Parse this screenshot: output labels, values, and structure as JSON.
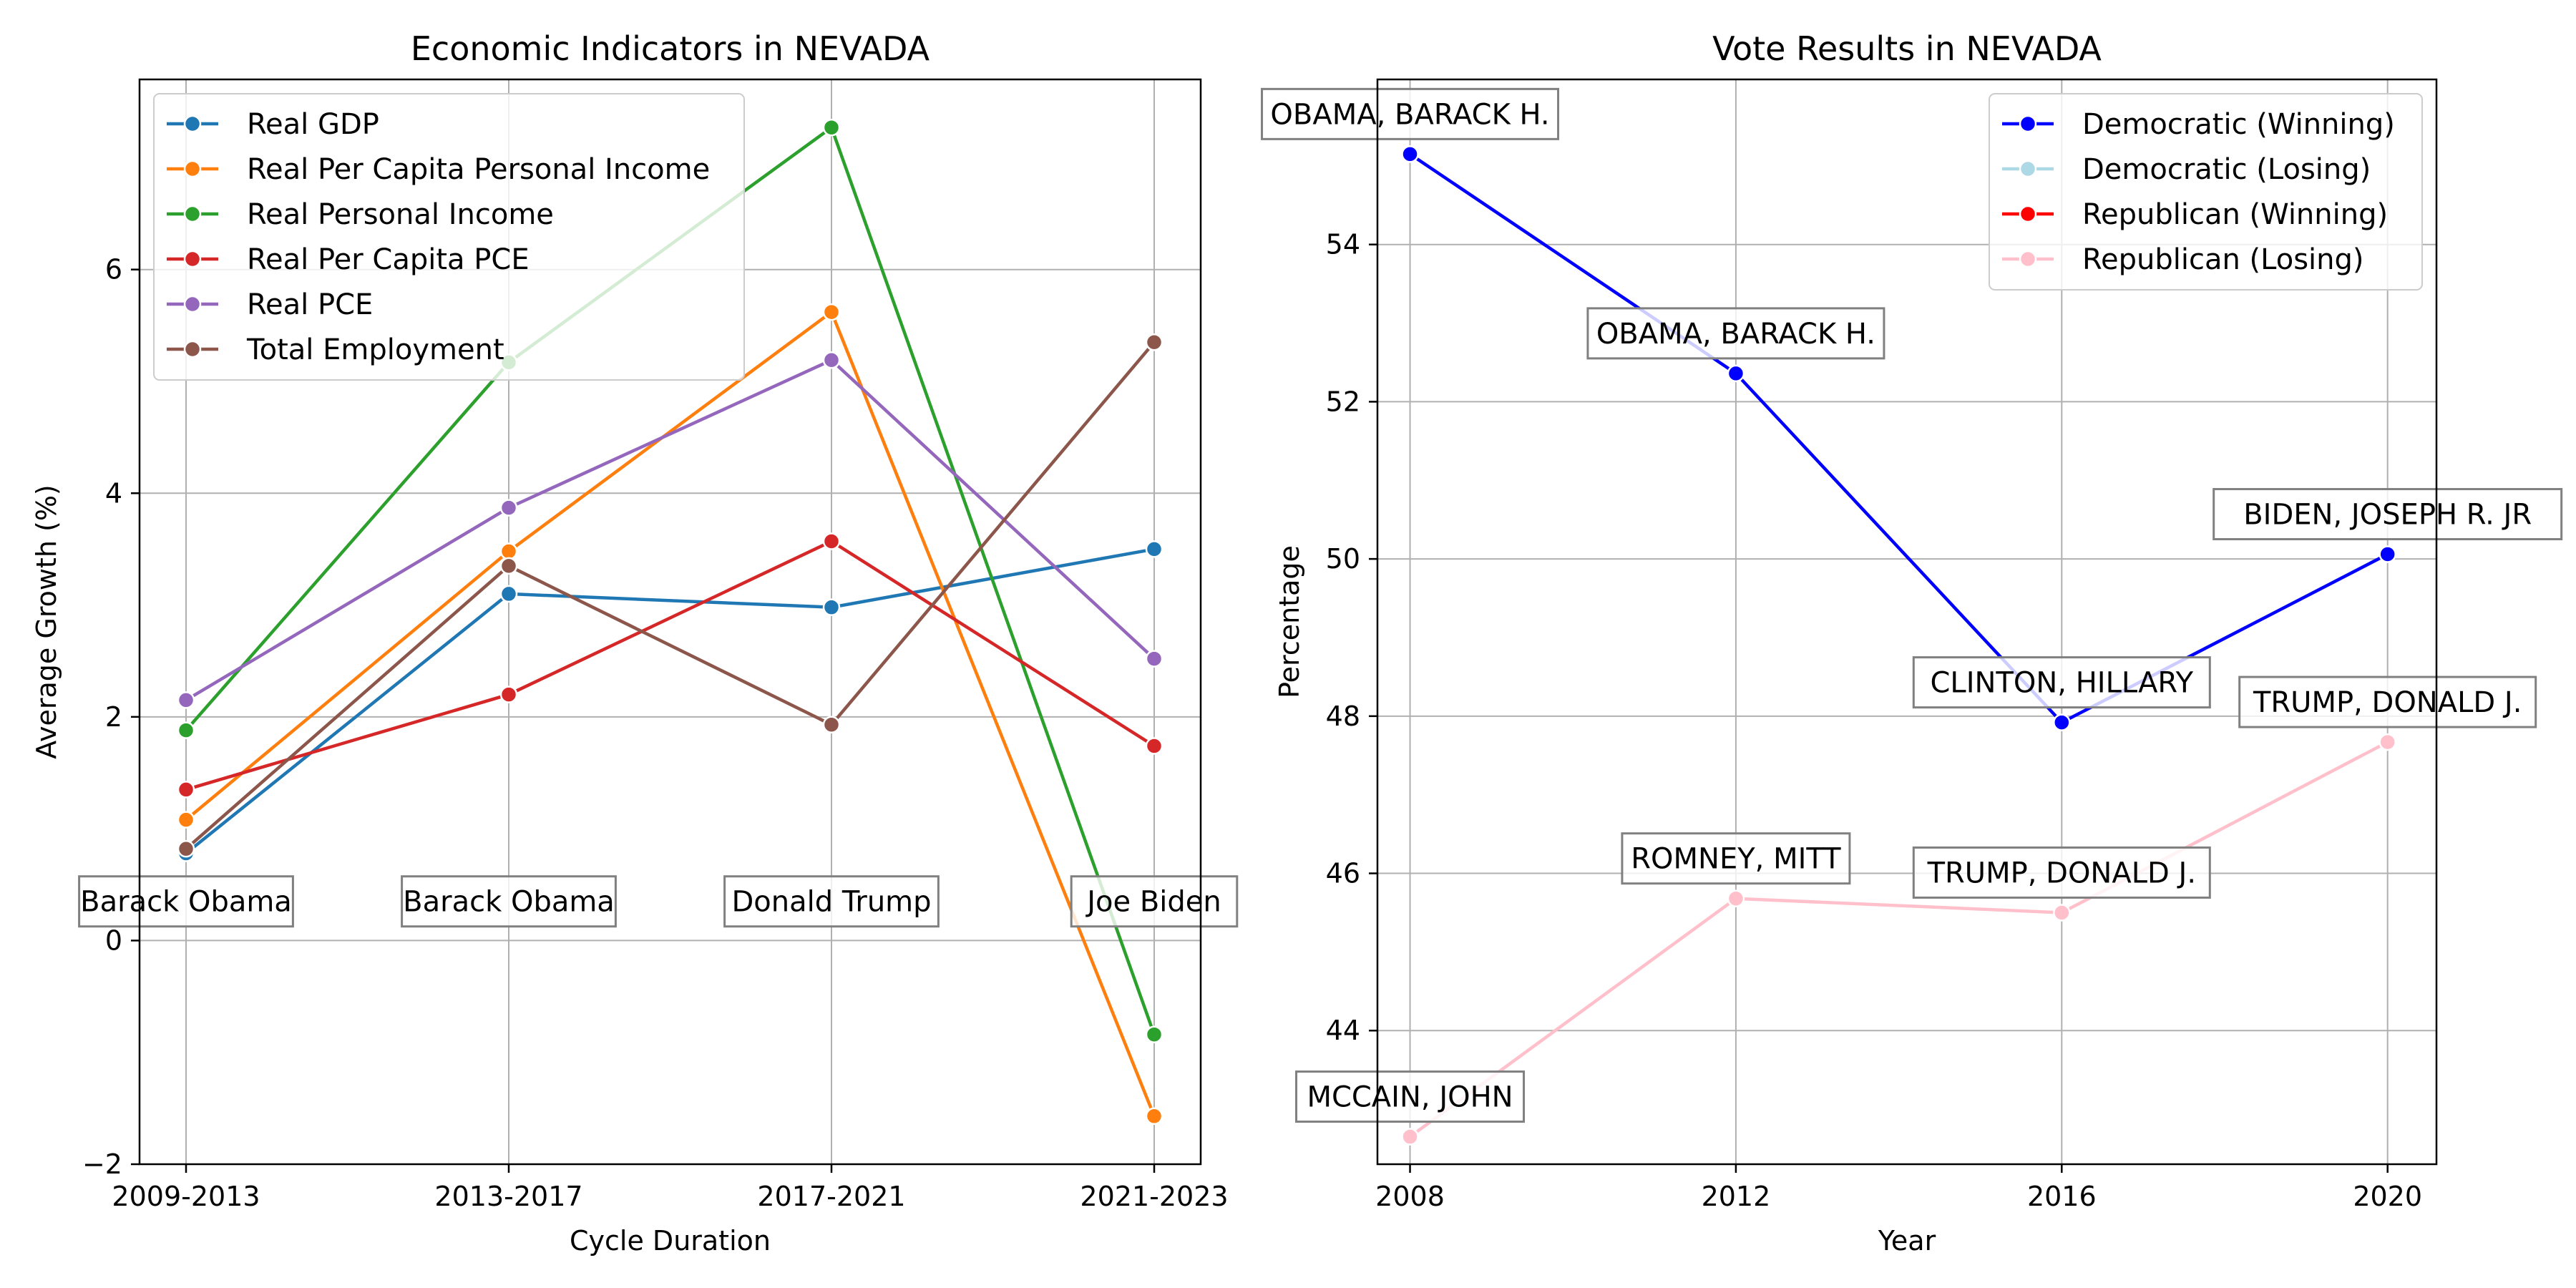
{
  "chart_data": [
    {
      "type": "line",
      "title": "Economic Indicators in NEVADA",
      "xlabel": "Cycle Duration",
      "ylabel": "Average Growth (%)",
      "categories": [
        "2009-2013",
        "2013-2017",
        "2017-2021",
        "2021-2023"
      ],
      "ylim": [
        -2.0,
        7.7
      ],
      "yticks": [
        -2,
        0,
        2,
        4,
        6
      ],
      "grid": true,
      "legend_position": "upper-left",
      "series": [
        {
          "name": "Real GDP",
          "color": "#1f77b4",
          "values": [
            0.78,
            3.1,
            2.98,
            3.5
          ]
        },
        {
          "name": "Real Per Capita Personal Income",
          "color": "#ff7f0e",
          "values": [
            1.08,
            3.48,
            5.62,
            -1.57
          ]
        },
        {
          "name": "Real Personal Income",
          "color": "#2ca02c",
          "values": [
            1.88,
            5.17,
            7.27,
            -0.84
          ]
        },
        {
          "name": "Real Per Capita PCE",
          "color": "#d62728",
          "values": [
            1.35,
            2.2,
            3.57,
            1.74
          ]
        },
        {
          "name": "Real PCE",
          "color": "#9467bd",
          "values": [
            2.15,
            3.87,
            5.19,
            2.52
          ]
        },
        {
          "name": "Total Employment",
          "color": "#8c564b",
          "values": [
            0.82,
            3.35,
            1.93,
            5.35
          ]
        }
      ],
      "annotations": [
        {
          "text": "Barack Obama",
          "category": "2009-2013",
          "y": 0.35
        },
        {
          "text": "Barack Obama",
          "category": "2013-2017",
          "y": 0.35
        },
        {
          "text": "Donald Trump",
          "category": "2017-2021",
          "y": 0.35
        },
        {
          "text": "Joe Biden",
          "category": "2021-2023",
          "y": 0.35
        }
      ]
    },
    {
      "type": "line",
      "title": "Vote Results in NEVADA",
      "xlabel": "Year",
      "ylabel": "Percentage",
      "x": [
        2008,
        2012,
        2016,
        2020
      ],
      "xlim": [
        2007.6,
        2020.6
      ],
      "ylim": [
        42.3,
        56.1
      ],
      "yticks": [
        44,
        46,
        48,
        50,
        52,
        54
      ],
      "grid": true,
      "legend_position": "upper-right",
      "legend": [
        {
          "name": "Democratic (Winning)",
          "color": "#0000ff"
        },
        {
          "name": "Democratic (Losing)",
          "color": "#add8e6"
        },
        {
          "name": "Republican (Winning)",
          "color": "#ff0000"
        },
        {
          "name": "Republican (Losing)",
          "color": "#ffc0cb"
        }
      ],
      "series": [
        {
          "name": "Democratic",
          "color": "#0000ff",
          "points": [
            {
              "x": 2008,
              "y": 55.15,
              "label": "OBAMA, BARACK H.",
              "color": "#0000ff"
            },
            {
              "x": 2012,
              "y": 52.36,
              "label": "OBAMA, BARACK H.",
              "color": "#0000ff"
            },
            {
              "x": 2016,
              "y": 47.92,
              "label": "CLINTON, HILLARY",
              "color": "#0000ff"
            },
            {
              "x": 2020,
              "y": 50.06,
              "label": "BIDEN, JOSEPH R. JR",
              "color": "#0000ff"
            }
          ],
          "segment_colors": [
            "#0000ff",
            "#0000ff",
            "#0000ff"
          ]
        },
        {
          "name": "Republican",
          "color": "#ffc0cb",
          "points": [
            {
              "x": 2008,
              "y": 42.65,
              "label": "MCCAIN, JOHN",
              "color": "#ffc0cb"
            },
            {
              "x": 2012,
              "y": 45.68,
              "label": "ROMNEY, MITT",
              "color": "#ffc0cb"
            },
            {
              "x": 2016,
              "y": 45.5,
              "label": "TRUMP, DONALD J.",
              "color": "#ffc0cb"
            },
            {
              "x": 2020,
              "y": 47.67,
              "label": "TRUMP, DONALD J.",
              "color": "#ffc0cb"
            }
          ],
          "segment_colors": [
            "#ffc0cb",
            "#ffc0cb",
            "#ffc0cb"
          ]
        }
      ]
    }
  ]
}
